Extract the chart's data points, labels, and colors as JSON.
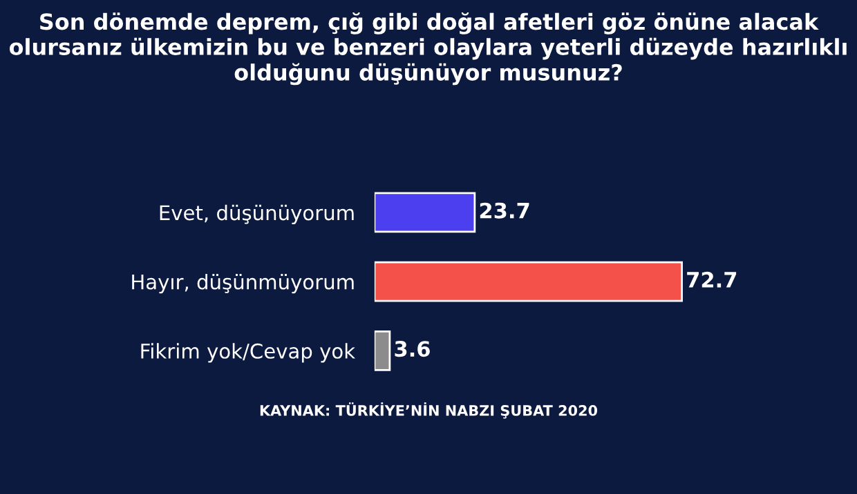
{
  "chart_data": {
    "type": "bar",
    "orientation": "horizontal",
    "title": "Son dönemde deprem, çığ gibi doğal afetleri göz önüne alacak olursanız ülkemizin bu ve benzeri olaylara yeterli düzeyde hazırlıklı olduğunu düşünüyor musunuz?",
    "categories": [
      "Evet, düşünüyorum",
      "Hayır, düşünmüyorum",
      "Fikrim yok/Cevap yok"
    ],
    "values": [
      23.7,
      72.7,
      3.6
    ],
    "colors": [
      "#4b3ff0",
      "#f4514b",
      "#8c8c8c"
    ],
    "data_labels": true,
    "annotations": [
      "KAYNAK: TÜRKİYE’NİN NABZI ŞUBAT 2020"
    ]
  }
}
